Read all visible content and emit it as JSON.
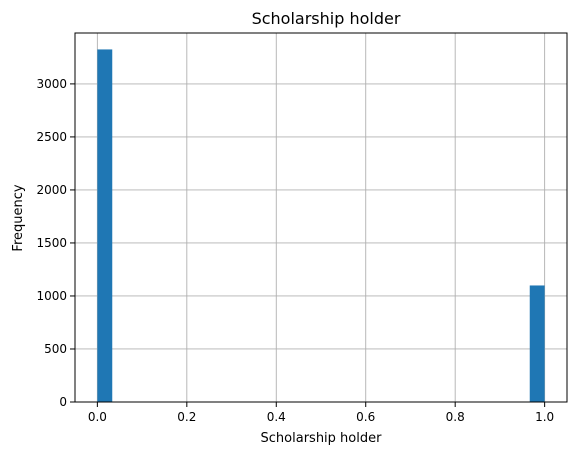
{
  "chart_data": {
    "type": "bar",
    "title": "Scholarship holder",
    "xlabel": "Scholarship holder",
    "ylabel": "Frequency",
    "xlim": [
      -0.05,
      1.05
    ],
    "ylim": [
      0,
      3480
    ],
    "xticks": [
      0.0,
      0.2,
      0.4,
      0.6,
      0.8,
      1.0
    ],
    "xtick_labels": [
      "0.0",
      "0.2",
      "0.4",
      "0.6",
      "0.8",
      "1.0"
    ],
    "yticks": [
      0,
      500,
      1000,
      1500,
      2000,
      2500,
      3000
    ],
    "ytick_labels": [
      "0",
      "500",
      "1000",
      "1500",
      "2000",
      "2500",
      "3000"
    ],
    "grid": true,
    "color": "#1f77b4",
    "bins": [
      {
        "x0": 0.0,
        "x1": 0.0333,
        "value": 3325
      },
      {
        "x0": 0.9667,
        "x1": 1.0,
        "value": 1099
      }
    ]
  }
}
